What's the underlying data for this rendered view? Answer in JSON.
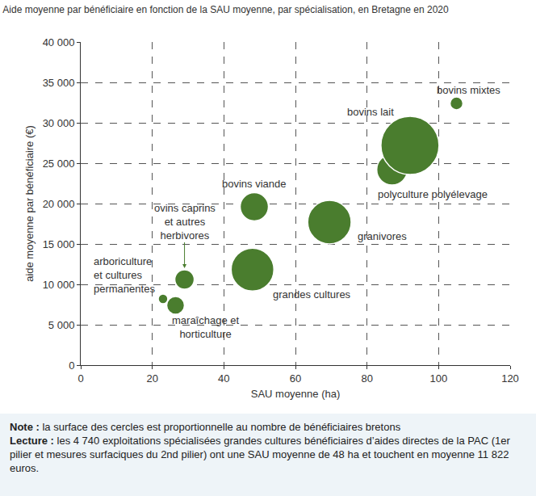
{
  "chart_data": {
    "type": "bubble",
    "title": "Aide moyenne par bénéficiaire en fonction de la SAU moyenne, par spécialisation, en Bretagne en 2020",
    "x_label": "SAU moyenne (ha)",
    "y_label": "aide moyenne par bénéficiaire (€)",
    "names": [
      "arboriculture et cultures permanentes",
      "maraîchage et horticulture",
      "ovins caprins et autres herbivores",
      "grandes cultures",
      "bovins viande",
      "granivores",
      "polyculture polyélevage",
      "bovins lait",
      "bovins mixtes"
    ],
    "x": [
      23,
      26.5,
      29,
      48,
      48.5,
      69.5,
      87,
      92,
      105
    ],
    "values": [
      8200,
      7400,
      10600,
      11822,
      19600,
      17700,
      24200,
      27200,
      32400
    ],
    "sizes": [
      240,
      820,
      975,
      4740,
      2070,
      4900,
      2440,
      8760,
      430
    ],
    "color": "#4a7d2e",
    "marker": "circle",
    "xlim": [
      0,
      120
    ],
    "xticks": [
      0,
      20,
      40,
      60,
      80,
      100,
      120
    ],
    "ylim": [
      0,
      40000
    ],
    "yticks": [
      0,
      {
        "value": 5000,
        "label": "5 000"
      },
      {
        "value": 10000,
        "label": "10 000"
      },
      {
        "value": 15000,
        "label": "15 000"
      },
      {
        "value": 20000,
        "label": "20 000"
      },
      {
        "value": 25000,
        "label": "25 000"
      },
      {
        "value": 30000,
        "label": "30 000"
      },
      {
        "value": 35000,
        "label": "35 000"
      },
      {
        "value": 40000,
        "label": "40 000"
      }
    ],
    "grid": true,
    "notes": [
      {
        "label": "Note :",
        "text": "la surface des cercles est proportionnelle au nombre de bénéficiaires bretons"
      },
      {
        "label": "Lecture :",
        "text": "les 4 740 exploitations spécialisées grandes cultures bénéficiaires d’aides directes de la PAC (1er pilier et mesures surfaciques du 2nd pilier) ont une SAU moyenne de 48 ha et touchent en moyenne 11 822 euros."
      }
    ]
  }
}
